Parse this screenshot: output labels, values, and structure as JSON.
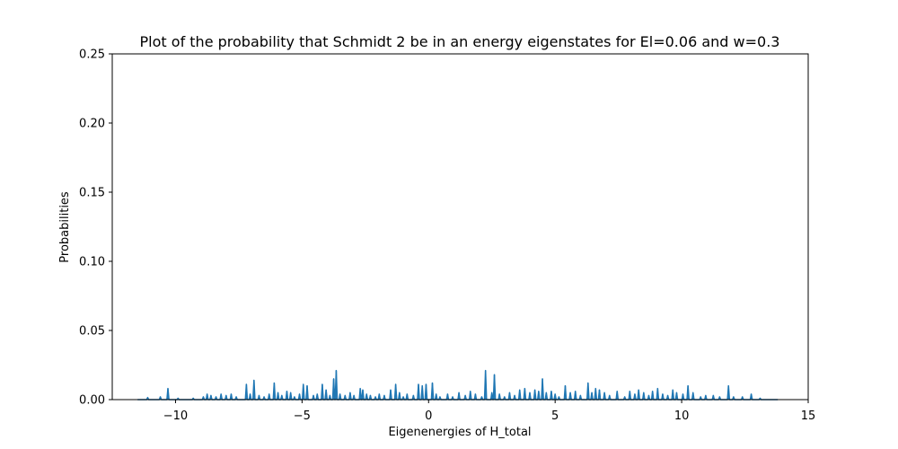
{
  "chart_data": {
    "type": "line",
    "title": "Plot of the probability that Schmidt 2 be in an energy eigenstates for El=0.06 and w=0.3",
    "xlabel": "Eigenenergies of H_total",
    "ylabel": "Probabilities",
    "xlim": [
      -12.5,
      15.0
    ],
    "ylim": [
      0.0,
      0.25
    ],
    "x_ticks": [
      -10,
      -5,
      0,
      5,
      10,
      15
    ],
    "x_tick_labels": [
      "−10",
      "−5",
      "0",
      "5",
      "10",
      "15"
    ],
    "y_ticks": [
      0.0,
      0.05,
      0.1,
      0.15,
      0.2,
      0.25
    ],
    "y_tick_labels": [
      "0.00",
      "0.05",
      "0.10",
      "0.15",
      "0.20",
      "0.25"
    ],
    "grid": false,
    "series": [
      {
        "color": "#1f77b4",
        "spikes": [
          [
            -11.1,
            0.0015
          ],
          [
            -10.6,
            0.002
          ],
          [
            -10.3,
            0.008
          ],
          [
            -9.9,
            0.001
          ],
          [
            -9.3,
            0.001
          ],
          [
            -8.9,
            0.002
          ],
          [
            -8.75,
            0.004
          ],
          [
            -8.6,
            0.003
          ],
          [
            -8.4,
            0.002
          ],
          [
            -8.2,
            0.004
          ],
          [
            -8.0,
            0.003
          ],
          [
            -7.8,
            0.004
          ],
          [
            -7.6,
            0.002
          ],
          [
            -7.2,
            0.011
          ],
          [
            -7.05,
            0.004
          ],
          [
            -6.9,
            0.014
          ],
          [
            -6.7,
            0.003
          ],
          [
            -6.5,
            0.002
          ],
          [
            -6.3,
            0.004
          ],
          [
            -6.1,
            0.012
          ],
          [
            -5.95,
            0.005
          ],
          [
            -5.8,
            0.003
          ],
          [
            -5.6,
            0.006
          ],
          [
            -5.45,
            0.005
          ],
          [
            -5.3,
            0.002
          ],
          [
            -5.1,
            0.004
          ],
          [
            -4.95,
            0.011
          ],
          [
            -4.8,
            0.01
          ],
          [
            -4.55,
            0.003
          ],
          [
            -4.4,
            0.004
          ],
          [
            -4.2,
            0.011
          ],
          [
            -4.05,
            0.007
          ],
          [
            -3.9,
            0.003
          ],
          [
            -3.75,
            0.015
          ],
          [
            -3.65,
            0.021
          ],
          [
            -3.5,
            0.004
          ],
          [
            -3.3,
            0.003
          ],
          [
            -3.1,
            0.005
          ],
          [
            -2.95,
            0.003
          ],
          [
            -2.7,
            0.008
          ],
          [
            -2.6,
            0.007
          ],
          [
            -2.45,
            0.004
          ],
          [
            -2.3,
            0.003
          ],
          [
            -2.1,
            0.002
          ],
          [
            -1.95,
            0.004
          ],
          [
            -1.75,
            0.003
          ],
          [
            -1.5,
            0.007
          ],
          [
            -1.3,
            0.011
          ],
          [
            -1.15,
            0.005
          ],
          [
            -1.0,
            0.002
          ],
          [
            -0.85,
            0.004
          ],
          [
            -0.6,
            0.003
          ],
          [
            -0.4,
            0.011
          ],
          [
            -0.25,
            0.01
          ],
          [
            -0.1,
            0.011
          ],
          [
            0.15,
            0.012
          ],
          [
            0.3,
            0.004
          ],
          [
            0.45,
            0.002
          ],
          [
            0.75,
            0.004
          ],
          [
            0.95,
            0.002
          ],
          [
            1.2,
            0.005
          ],
          [
            1.45,
            0.003
          ],
          [
            1.65,
            0.006
          ],
          [
            1.85,
            0.004
          ],
          [
            2.1,
            0.002
          ],
          [
            2.25,
            0.021
          ],
          [
            2.5,
            0.005
          ],
          [
            2.6,
            0.018
          ],
          [
            2.8,
            0.004
          ],
          [
            3.0,
            0.002
          ],
          [
            3.2,
            0.005
          ],
          [
            3.4,
            0.003
          ],
          [
            3.6,
            0.007
          ],
          [
            3.8,
            0.008
          ],
          [
            4.0,
            0.005
          ],
          [
            4.2,
            0.007
          ],
          [
            4.35,
            0.006
          ],
          [
            4.5,
            0.015
          ],
          [
            4.65,
            0.005
          ],
          [
            4.85,
            0.006
          ],
          [
            5.0,
            0.004
          ],
          [
            5.15,
            0.002
          ],
          [
            5.4,
            0.01
          ],
          [
            5.6,
            0.005
          ],
          [
            5.8,
            0.006
          ],
          [
            6.0,
            0.003
          ],
          [
            6.3,
            0.012
          ],
          [
            6.45,
            0.005
          ],
          [
            6.6,
            0.008
          ],
          [
            6.75,
            0.007
          ],
          [
            6.95,
            0.005
          ],
          [
            7.15,
            0.003
          ],
          [
            7.45,
            0.006
          ],
          [
            7.75,
            0.002
          ],
          [
            7.95,
            0.006
          ],
          [
            8.15,
            0.004
          ],
          [
            8.3,
            0.007
          ],
          [
            8.5,
            0.005
          ],
          [
            8.7,
            0.003
          ],
          [
            8.85,
            0.006
          ],
          [
            9.05,
            0.008
          ],
          [
            9.25,
            0.004
          ],
          [
            9.45,
            0.003
          ],
          [
            9.65,
            0.007
          ],
          [
            9.8,
            0.005
          ],
          [
            10.05,
            0.004
          ],
          [
            10.25,
            0.01
          ],
          [
            10.45,
            0.005
          ],
          [
            10.75,
            0.002
          ],
          [
            10.95,
            0.003
          ],
          [
            11.25,
            0.003
          ],
          [
            11.5,
            0.002
          ],
          [
            11.85,
            0.01
          ],
          [
            12.05,
            0.002
          ],
          [
            12.4,
            0.002
          ],
          [
            12.75,
            0.004
          ],
          [
            13.1,
            0.001
          ]
        ],
        "x_start": -11.5,
        "x_end": 13.8
      }
    ]
  }
}
